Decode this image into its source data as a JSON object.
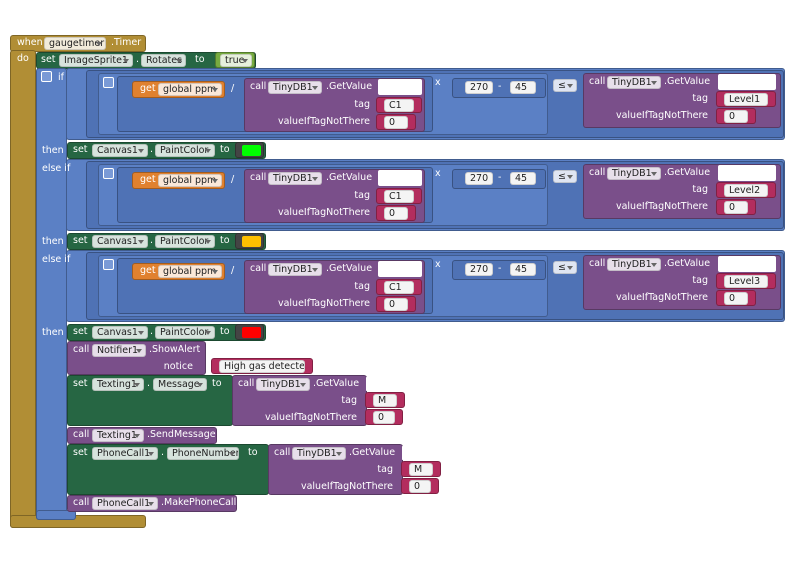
{
  "event": {
    "keyword": "when",
    "component": "gaugetimer",
    "event": ".Timer",
    "do": "do"
  },
  "rotate": {
    "set": "set",
    "component": "ImageSprite1",
    "dot": ".",
    "property": "Rotates",
    "to": "to",
    "value": "true"
  },
  "branches": [
    {
      "label": "if",
      "condition": {
        "get": "get",
        "variable": "global ppm",
        "divide": "/",
        "call": "call",
        "component": "TinyDB1",
        "method": ".GetValue",
        "tag_label": "tag",
        "tag": "C1",
        "default_label": "valueIfTagNotThere",
        "default": 0,
        "multiply": "x",
        "minuend": 270,
        "minus": "-",
        "subtrahend": 45,
        "compare": "≤",
        "call2": "call",
        "component2": "TinyDB1",
        "method2": ".GetValue",
        "tag_label2": "tag",
        "tag2": "Level1",
        "default_label2": "valueIfTagNotThere",
        "default2": 0
      },
      "then_label": "then",
      "then": {
        "set": "set",
        "component": "Canvas1",
        "dot": ".",
        "property": "PaintColor",
        "to": "to",
        "color": "#00ff00"
      }
    },
    {
      "label": "else if",
      "condition": {
        "get": "get",
        "variable": "global ppm",
        "divide": "/",
        "call": "call",
        "component": "TinyDB1",
        "method": ".GetValue",
        "tag_label": "tag",
        "tag": "C1",
        "default_label": "valueIfTagNotThere",
        "default": 0,
        "multiply": "x",
        "minuend": 270,
        "minus": "-",
        "subtrahend": 45,
        "compare": "≤",
        "call2": "call",
        "component2": "TinyDB1",
        "method2": ".GetValue",
        "tag_label2": "tag",
        "tag2": "Level2",
        "default_label2": "valueIfTagNotThere",
        "default2": 0
      },
      "then_label": "then",
      "then": {
        "set": "set",
        "component": "Canvas1",
        "dot": ".",
        "property": "PaintColor",
        "to": "to",
        "color": "#ffc000"
      }
    },
    {
      "label": "else if",
      "condition": {
        "get": "get",
        "variable": "global ppm",
        "divide": "/",
        "call": "call",
        "component": "TinyDB1",
        "method": ".GetValue",
        "tag_label": "tag",
        "tag": "C1",
        "default_label": "valueIfTagNotThere",
        "default": 0,
        "multiply": "x",
        "minuend": 270,
        "minus": "-",
        "subtrahend": 45,
        "compare": "≤",
        "call2": "call",
        "component2": "TinyDB1",
        "method2": ".GetValue",
        "tag_label2": "tag",
        "tag2": "Level3",
        "default_label2": "valueIfTagNotThere",
        "default2": 0
      },
      "then_label": "then",
      "then": {
        "set": "set",
        "component": "Canvas1",
        "dot": ".",
        "property": "PaintColor",
        "to": "to",
        "color": "#ff0000"
      }
    }
  ],
  "actions": [
    {
      "call": "call",
      "component": "Notifier1",
      "method": ".ShowAlert",
      "arg_label": "notice",
      "arg": "High gas detected"
    },
    {
      "set": "set",
      "component": "Texting1",
      "dot": ".",
      "property": "Message",
      "to": "to",
      "value": {
        "call": "call",
        "component": "TinyDB1",
        "method": ".GetValue",
        "tag_label": "tag",
        "tag": "M",
        "default_label": "valueIfTagNotThere",
        "default": 0
      }
    },
    {
      "call": "call",
      "component": "Texting1",
      "method": ".SendMessage"
    },
    {
      "set": "set",
      "component": "PhoneCall1",
      "dot": ".",
      "property": "PhoneNumber",
      "to": "to",
      "value": {
        "call": "call",
        "component": "TinyDB1",
        "method": ".GetValue",
        "tag_label": "tag",
        "tag": "M",
        "default_label": "valueIfTagNotThere",
        "default": 0
      }
    },
    {
      "call": "call",
      "component": "PhoneCall1",
      "method": ".MakePhoneCall"
    }
  ]
}
